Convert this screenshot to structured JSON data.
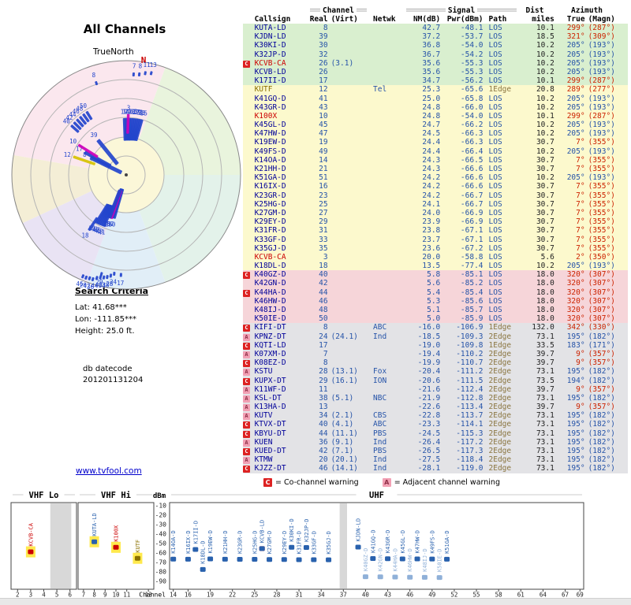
{
  "polar": {
    "title": "All Channels",
    "true_north": "TrueNorth",
    "north": "N"
  },
  "criteria": {
    "heading": "Search Criteria",
    "lat": "Lat: 41.68***",
    "lon": "Lon: -111.85***",
    "height": "Height: 25.0 ft.",
    "datecode_label": "db datecode",
    "datecode": "201201131204"
  },
  "link": {
    "text": "www.tvfool.com"
  },
  "legend": {
    "c_icon": "C",
    "c_text": "= Co-channel warning",
    "a_icon": "A",
    "a_text": "= Adjacent channel warning"
  },
  "table": {
    "headers": {
      "channel": "Channel",
      "signal": "Signal",
      "dist": "Dist",
      "azimuth": "Azimuth",
      "callsign": "Callsign",
      "real": "Real",
      "virt": "(Virt)",
      "netwk": "Netwk",
      "nm": "NM(dB)",
      "pwr": "Pwr(dBm)",
      "path": "Path",
      "miles": "miles",
      "true": "True",
      "magn": "(Magn)"
    }
  },
  "colors": {
    "callsign_blue": "#000099",
    "num_blue": "#2553a8",
    "analog_red": "#cc0000",
    "kutf_olive": "#8a7000",
    "edge_olive": "#8a7540",
    "az_red": "#cc2200",
    "az_blue": "#2553a8",
    "dist_dark": "#222222",
    "warn_c_bg": "#dd2222",
    "warn_a_bg": "#f2a0b4",
    "tier_g": "#d9efcf",
    "tier_y": "#fcf9cd",
    "tier_p": "#f6d5d9",
    "tier_x": "#e3e3e6",
    "marker_digital": "#2244cc",
    "marker_analog": "#cc00bb",
    "marker_kutf": "#d6c200",
    "bar_blue": "#2961ad",
    "bar_weak": "#8fb0d8",
    "highlight": "#ffe94d",
    "link_blue": "#0000cc"
  },
  "spectrum": {
    "dbm_label": "dBm",
    "channel_label": "Channel",
    "yticks": [
      -10,
      -20,
      -30,
      -40,
      -50,
      -60,
      -70,
      -80,
      -90
    ],
    "bands": [
      {
        "name": "VHF Lo",
        "lo": 2,
        "hi": 6,
        "ticks": [
          2,
          3,
          4,
          5,
          6
        ]
      },
      {
        "name": "VHF Hi",
        "lo": 7,
        "hi": 13,
        "ticks": [
          7,
          8,
          9,
          10,
          11,
          13
        ]
      },
      {
        "name": "UHF",
        "lo": 14,
        "hi": 69,
        "ticks": [
          14,
          16,
          19,
          22,
          25,
          28,
          31,
          34,
          37,
          40,
          43,
          46,
          49,
          52,
          55,
          58,
          61,
          64,
          67,
          69
        ]
      }
    ],
    "gray_bands": [
      {
        "band": 0,
        "c0": 5,
        "c1": 5.6
      },
      {
        "band": 2,
        "c0": 37,
        "c1": 37
      }
    ]
  },
  "chart_data": {
    "type": "table",
    "title": "All Channels",
    "description": "TV signal analysis report: polar azimuth/strength plot, station table sorted by noise margin, and per-channel power spectrum",
    "columns": [
      "Callsign",
      "Real",
      "(Virt)",
      "Netwk",
      "NM(dB)",
      "Pwr(dBm)",
      "Path",
      "Dist miles",
      "Azimuth True",
      "Azimuth (Magn)"
    ],
    "tiers": {
      "g": "strong (green)",
      "y": "moderate (yellow)",
      "p": "weak (pink)",
      "x": "extreme (gray)"
    },
    "polar_plot": {
      "type": "radar",
      "angle": "azimuth true degrees, N up",
      "radius": "weaker signal farther from center"
    },
    "spectrum_plot": {
      "type": "bar",
      "x": "RF channel",
      "y": "Pwr (dBm)",
      "ylim": [
        -100,
        -10
      ]
    },
    "stations": [
      {
        "cs": "KUTA-LD",
        "re": 8,
        "vi": "",
        "ne": "",
        "nm": "42.7",
        "pw": "-48.1",
        "pa": "LOS",
        "di": "10.1",
        "az": 299,
        "mg": 287,
        "ti": "g",
        "wa": ""
      },
      {
        "cs": "KJDN-LD",
        "re": 39,
        "vi": "",
        "ne": "",
        "nm": "37.2",
        "pw": "-53.7",
        "pa": "LOS",
        "di": "18.5",
        "az": 321,
        "mg": 309,
        "ti": "g",
        "wa": ""
      },
      {
        "cs": "K30KI-D",
        "re": 30,
        "vi": "",
        "ne": "",
        "nm": "36.8",
        "pw": "-54.0",
        "pa": "LOS",
        "di": "10.2",
        "az": 205,
        "mg": 193,
        "ti": "g",
        "wa": ""
      },
      {
        "cs": "K32JP-D",
        "re": 32,
        "vi": "",
        "ne": "",
        "nm": "36.7",
        "pw": "-54.2",
        "pa": "LOS",
        "di": "10.2",
        "az": 205,
        "mg": 193,
        "ti": "g",
        "wa": ""
      },
      {
        "cs": "KCVB-CA",
        "re": 26,
        "vi": "(3.1)",
        "ne": "",
        "nm": "35.6",
        "pw": "-55.3",
        "pa": "LOS",
        "di": "10.2",
        "az": 205,
        "mg": 193,
        "ti": "g",
        "wa": "C",
        "kd": "a",
        "sl": false
      },
      {
        "cs": "KCVB-LD",
        "re": 26,
        "vi": "",
        "ne": "",
        "nm": "35.6",
        "pw": "-55.3",
        "pa": "LOS",
        "di": "10.2",
        "az": 205,
        "mg": 193,
        "ti": "g",
        "wa": ""
      },
      {
        "cs": "K17II-D",
        "re": 17,
        "vi": "",
        "ne": "",
        "nm": "34.7",
        "pw": "-56.2",
        "pa": "LOS",
        "di": "10.1",
        "az": 299,
        "mg": 287,
        "ti": "g",
        "wa": ""
      },
      {
        "cs": "KUTF",
        "re": 12,
        "vi": "",
        "ne": "Tel",
        "nm": "25.3",
        "pw": "-65.6",
        "pa": "1Edge",
        "di": "20.8",
        "az": 289,
        "mg": 277,
        "ti": "y",
        "wa": "",
        "kd": "t"
      },
      {
        "cs": "K41GQ-D",
        "re": 41,
        "vi": "",
        "ne": "",
        "nm": "25.0",
        "pw": "-65.8",
        "pa": "LOS",
        "di": "10.2",
        "az": 205,
        "mg": 193,
        "ti": "y",
        "wa": ""
      },
      {
        "cs": "K43GR-D",
        "re": 43,
        "vi": "",
        "ne": "",
        "nm": "24.8",
        "pw": "-66.0",
        "pa": "LOS",
        "di": "10.2",
        "az": 205,
        "mg": 193,
        "ti": "y",
        "wa": ""
      },
      {
        "cs": "K100X",
        "re": 10,
        "vi": "",
        "ne": "",
        "nm": "24.8",
        "pw": "-54.0",
        "pa": "LOS",
        "di": "10.1",
        "az": 299,
        "mg": 287,
        "ti": "y",
        "wa": "",
        "kd": "a"
      },
      {
        "cs": "K45GL-D",
        "re": 45,
        "vi": "",
        "ne": "",
        "nm": "24.7",
        "pw": "-66.2",
        "pa": "LOS",
        "di": "10.2",
        "az": 205,
        "mg": 193,
        "ti": "y",
        "wa": ""
      },
      {
        "cs": "K47HW-D",
        "re": 47,
        "vi": "",
        "ne": "",
        "nm": "24.5",
        "pw": "-66.3",
        "pa": "LOS",
        "di": "10.2",
        "az": 205,
        "mg": 193,
        "ti": "y",
        "wa": ""
      },
      {
        "cs": "K19EW-D",
        "re": 19,
        "vi": "",
        "ne": "",
        "nm": "24.4",
        "pw": "-66.3",
        "pa": "LOS",
        "di": "30.7",
        "az": 7,
        "mg": 355,
        "ti": "y",
        "wa": ""
      },
      {
        "cs": "K49FS-D",
        "re": 49,
        "vi": "",
        "ne": "",
        "nm": "24.4",
        "pw": "-66.4",
        "pa": "LOS",
        "di": "10.2",
        "az": 205,
        "mg": 193,
        "ti": "y",
        "wa": ""
      },
      {
        "cs": "K14OA-D",
        "re": 14,
        "vi": "",
        "ne": "",
        "nm": "24.3",
        "pw": "-66.5",
        "pa": "LOS",
        "di": "30.7",
        "az": 7,
        "mg": 355,
        "ti": "y",
        "wa": ""
      },
      {
        "cs": "K21HH-D",
        "re": 21,
        "vi": "",
        "ne": "",
        "nm": "24.3",
        "pw": "-66.6",
        "pa": "LOS",
        "di": "30.7",
        "az": 7,
        "mg": 355,
        "ti": "y",
        "wa": ""
      },
      {
        "cs": "K51GA-D",
        "re": 51,
        "vi": "",
        "ne": "",
        "nm": "24.2",
        "pw": "-66.6",
        "pa": "LOS",
        "di": "10.2",
        "az": 205,
        "mg": 193,
        "ti": "y",
        "wa": ""
      },
      {
        "cs": "K16IX-D",
        "re": 16,
        "vi": "",
        "ne": "",
        "nm": "24.2",
        "pw": "-66.6",
        "pa": "LOS",
        "di": "30.7",
        "az": 7,
        "mg": 355,
        "ti": "y",
        "wa": ""
      },
      {
        "cs": "K23GR-D",
        "re": 23,
        "vi": "",
        "ne": "",
        "nm": "24.2",
        "pw": "-66.7",
        "pa": "LOS",
        "di": "30.7",
        "az": 7,
        "mg": 355,
        "ti": "y",
        "wa": ""
      },
      {
        "cs": "K25HG-D",
        "re": 25,
        "vi": "",
        "ne": "",
        "nm": "24.1",
        "pw": "-66.7",
        "pa": "LOS",
        "di": "30.7",
        "az": 7,
        "mg": 355,
        "ti": "y",
        "wa": ""
      },
      {
        "cs": "K27GM-D",
        "re": 27,
        "vi": "",
        "ne": "",
        "nm": "24.0",
        "pw": "-66.9",
        "pa": "LOS",
        "di": "30.7",
        "az": 7,
        "mg": 355,
        "ti": "y",
        "wa": ""
      },
      {
        "cs": "K29EY-D",
        "re": 29,
        "vi": "",
        "ne": "",
        "nm": "23.9",
        "pw": "-66.9",
        "pa": "LOS",
        "di": "30.7",
        "az": 7,
        "mg": 355,
        "ti": "y",
        "wa": ""
      },
      {
        "cs": "K31FR-D",
        "re": 31,
        "vi": "",
        "ne": "",
        "nm": "23.8",
        "pw": "-67.1",
        "pa": "LOS",
        "di": "30.7",
        "az": 7,
        "mg": 355,
        "ti": "y",
        "wa": ""
      },
      {
        "cs": "K33GF-D",
        "re": 33,
        "vi": "",
        "ne": "",
        "nm": "23.7",
        "pw": "-67.1",
        "pa": "LOS",
        "di": "30.7",
        "az": 7,
        "mg": 355,
        "ti": "y",
        "wa": ""
      },
      {
        "cs": "K35GJ-D",
        "re": 35,
        "vi": "",
        "ne": "",
        "nm": "23.6",
        "pw": "-67.2",
        "pa": "LOS",
        "di": "30.7",
        "az": 7,
        "mg": 355,
        "ti": "y",
        "wa": ""
      },
      {
        "cs": "KCVB-CA",
        "re": 3,
        "vi": "",
        "ne": "",
        "nm": "20.0",
        "pw": "-58.8",
        "pa": "LOS",
        "di": "5.6",
        "az": 2,
        "mg": 350,
        "ti": "y",
        "wa": "",
        "kd": "a"
      },
      {
        "cs": "K18DL-D",
        "re": 18,
        "vi": "",
        "ne": "",
        "nm": "13.5",
        "pw": "-77.4",
        "pa": "LOS",
        "di": "10.2",
        "az": 205,
        "mg": 193,
        "ti": "y",
        "wa": ""
      },
      {
        "cs": "K40GZ-D",
        "re": 40,
        "vi": "",
        "ne": "",
        "nm": "5.8",
        "pw": "-85.1",
        "pa": "LOS",
        "di": "18.0",
        "az": 320,
        "mg": 307,
        "ti": "p",
        "wa": "C"
      },
      {
        "cs": "K42GN-D",
        "re": 42,
        "vi": "",
        "ne": "",
        "nm": "5.6",
        "pw": "-85.2",
        "pa": "LOS",
        "di": "18.0",
        "az": 320,
        "mg": 307,
        "ti": "p",
        "wa": ""
      },
      {
        "cs": "K44HA-D",
        "re": 44,
        "vi": "",
        "ne": "",
        "nm": "5.4",
        "pw": "-85.4",
        "pa": "LOS",
        "di": "18.0",
        "az": 320,
        "mg": 307,
        "ti": "p",
        "wa": "C"
      },
      {
        "cs": "K46HW-D",
        "re": 46,
        "vi": "",
        "ne": "",
        "nm": "5.3",
        "pw": "-85.6",
        "pa": "LOS",
        "di": "18.0",
        "az": 320,
        "mg": 307,
        "ti": "p",
        "wa": ""
      },
      {
        "cs": "K48IJ-D",
        "re": 48,
        "vi": "",
        "ne": "",
        "nm": "5.1",
        "pw": "-85.7",
        "pa": "LOS",
        "di": "18.0",
        "az": 320,
        "mg": 307,
        "ti": "p",
        "wa": ""
      },
      {
        "cs": "K50IE-D",
        "re": 50,
        "vi": "",
        "ne": "",
        "nm": "5.0",
        "pw": "-85.9",
        "pa": "LOS",
        "di": "18.0",
        "az": 320,
        "mg": 307,
        "ti": "p",
        "wa": ""
      },
      {
        "cs": "KIFI-DT",
        "re": 8,
        "vi": "",
        "ne": "ABC",
        "nm": "-16.0",
        "pw": "-106.9",
        "pa": "1Edge",
        "di": "132.0",
        "az": 342,
        "mg": 330,
        "ti": "x",
        "wa": "C"
      },
      {
        "cs": "KPNZ-DT",
        "re": 24,
        "vi": "(24.1)",
        "ne": "Ind",
        "nm": "-18.5",
        "pw": "-109.3",
        "pa": "2Edge",
        "di": "73.1",
        "az": 195,
        "mg": 182,
        "ti": "x",
        "wa": "A"
      },
      {
        "cs": "KQTI-LD",
        "re": 17,
        "vi": "",
        "ne": "",
        "nm": "-19.0",
        "pw": "-109.8",
        "pa": "1Edge",
        "di": "33.5",
        "az": 183,
        "mg": 171,
        "ti": "x",
        "wa": "C"
      },
      {
        "cs": "K07XM-D",
        "re": 7,
        "vi": "",
        "ne": "",
        "nm": "-19.4",
        "pw": "-110.2",
        "pa": "2Edge",
        "di": "39.7",
        "az": 9,
        "mg": 357,
        "ti": "x",
        "wa": "A"
      },
      {
        "cs": "K08EZ-D",
        "re": 8,
        "vi": "",
        "ne": "",
        "nm": "-19.9",
        "pw": "-110.7",
        "pa": "2Edge",
        "di": "39.7",
        "az": 9,
        "mg": 357,
        "ti": "x",
        "wa": "C"
      },
      {
        "cs": "KSTU",
        "re": 28,
        "vi": "(13.1)",
        "ne": "Fox",
        "nm": "-20.4",
        "pw": "-111.2",
        "pa": "2Edge",
        "di": "73.1",
        "az": 195,
        "mg": 182,
        "ti": "x",
        "wa": "A"
      },
      {
        "cs": "KUPX-DT",
        "re": 29,
        "vi": "(16.1)",
        "ne": "ION",
        "nm": "-20.6",
        "pw": "-111.5",
        "pa": "2Edge",
        "di": "73.5",
        "az": 194,
        "mg": 182,
        "ti": "x",
        "wa": "C"
      },
      {
        "cs": "K11WF-D",
        "re": 11,
        "vi": "",
        "ne": "",
        "nm": "-21.6",
        "pw": "-112.4",
        "pa": "2Edge",
        "di": "39.7",
        "az": 9,
        "mg": 357,
        "ti": "x",
        "wa": "A"
      },
      {
        "cs": "KSL-DT",
        "re": 38,
        "vi": "(5.1)",
        "ne": "NBC",
        "nm": "-21.9",
        "pw": "-112.8",
        "pa": "2Edge",
        "di": "73.1",
        "az": 195,
        "mg": 182,
        "ti": "x",
        "wa": "A"
      },
      {
        "cs": "K13HA-D",
        "re": 13,
        "vi": "",
        "ne": "",
        "nm": "-22.6",
        "pw": "-113.4",
        "pa": "2Edge",
        "di": "39.7",
        "az": 9,
        "mg": 357,
        "ti": "x",
        "wa": "A"
      },
      {
        "cs": "KUTV",
        "re": 34,
        "vi": "(2.1)",
        "ne": "CBS",
        "nm": "-22.8",
        "pw": "-113.7",
        "pa": "2Edge",
        "di": "73.1",
        "az": 195,
        "mg": 182,
        "ti": "x",
        "wa": "A"
      },
      {
        "cs": "KTVX-DT",
        "re": 40,
        "vi": "(4.1)",
        "ne": "ABC",
        "nm": "-23.3",
        "pw": "-114.1",
        "pa": "2Edge",
        "di": "73.1",
        "az": 195,
        "mg": 182,
        "ti": "x",
        "wa": "C"
      },
      {
        "cs": "KBYU-DT",
        "re": 44,
        "vi": "(11.1)",
        "ne": "PBS",
        "nm": "-24.5",
        "pw": "-115.3",
        "pa": "2Edge",
        "di": "73.1",
        "az": 195,
        "mg": 182,
        "ti": "x",
        "wa": "C"
      },
      {
        "cs": "KUEN",
        "re": 36,
        "vi": "(9.1)",
        "ne": "Ind",
        "nm": "-26.4",
        "pw": "-117.2",
        "pa": "2Edge",
        "di": "73.1",
        "az": 195,
        "mg": 182,
        "ti": "x",
        "wa": "A"
      },
      {
        "cs": "KUED-DT",
        "re": 42,
        "vi": "(7.1)",
        "ne": "PBS",
        "nm": "-26.5",
        "pw": "-117.3",
        "pa": "2Edge",
        "di": "73.1",
        "az": 195,
        "mg": 182,
        "ti": "x",
        "wa": "C"
      },
      {
        "cs": "KTMW",
        "re": 20,
        "vi": "(20.1)",
        "ne": "Ind",
        "nm": "-27.5",
        "pw": "-118.4",
        "pa": "2Edge",
        "di": "73.1",
        "az": 195,
        "mg": 182,
        "ti": "x",
        "wa": "A"
      },
      {
        "cs": "KJZZ-DT",
        "re": 46,
        "vi": "(14.1)",
        "ne": "Ind",
        "nm": "-28.1",
        "pw": "-119.0",
        "pa": "2Edge",
        "di": "73.1",
        "az": 195,
        "mg": 182,
        "ti": "x",
        "wa": "C"
      }
    ]
  }
}
